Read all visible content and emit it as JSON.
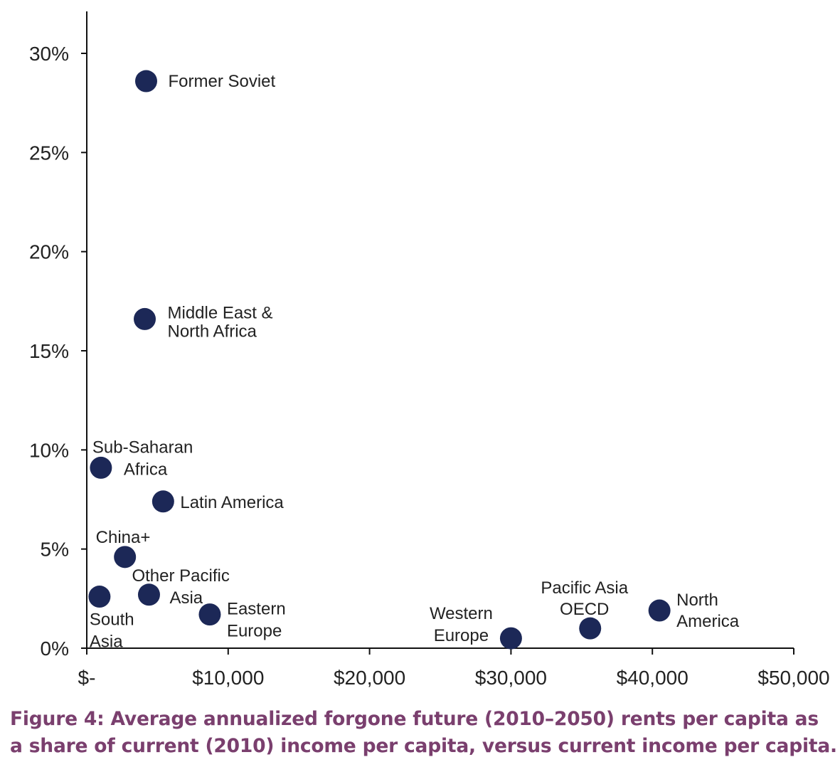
{
  "caption_lines": [
    "Figure 4: Average annualized forgone future (2010–2050) rents per capita as",
    "a share of current (2010) income per capita, versus current income per capita."
  ],
  "chart_data": {
    "type": "scatter",
    "title": "",
    "xlabel": "",
    "ylabel": "",
    "xlim": [
      0,
      50000
    ],
    "ylim": [
      0,
      32
    ],
    "x_ticks": [
      0,
      10000,
      20000,
      30000,
      40000,
      50000
    ],
    "x_tick_labels": [
      "$-",
      "$10,000",
      "$20,000",
      "$30,000",
      "$40,000",
      "$50,000"
    ],
    "y_ticks": [
      0,
      5,
      10,
      15,
      20,
      25,
      30
    ],
    "y_tick_labels": [
      "0%",
      "5%",
      "10%",
      "15%",
      "20%",
      "25%",
      "30%"
    ],
    "grid": false,
    "marker_color": "#1c2857",
    "points": [
      {
        "label": [
          "Former Soviet"
        ],
        "x": 4200,
        "y": 28.6
      },
      {
        "label": [
          "Middle East &",
          "North Africa"
        ],
        "x": 4100,
        "y": 16.6
      },
      {
        "label": [
          "Sub-Saharan",
          "Africa"
        ],
        "x": 1000,
        "y": 9.1
      },
      {
        "label": [
          "Latin America"
        ],
        "x": 5400,
        "y": 7.4
      },
      {
        "label": [
          "China+"
        ],
        "x": 2700,
        "y": 4.6
      },
      {
        "label": [
          "Other Pacific",
          "Asia"
        ],
        "x": 4400,
        "y": 2.7
      },
      {
        "label": [
          "South",
          "Asia"
        ],
        "x": 900,
        "y": 2.6
      },
      {
        "label": [
          "Eastern",
          "Europe"
        ],
        "x": 8700,
        "y": 1.7
      },
      {
        "label": [
          "Western",
          "Europe"
        ],
        "x": 30000,
        "y": 0.5
      },
      {
        "label": [
          "Pacific Asia",
          "OECD"
        ],
        "x": 35600,
        "y": 1.0
      },
      {
        "label": [
          "North",
          "America"
        ],
        "x": 40500,
        "y": 1.9
      }
    ]
  }
}
